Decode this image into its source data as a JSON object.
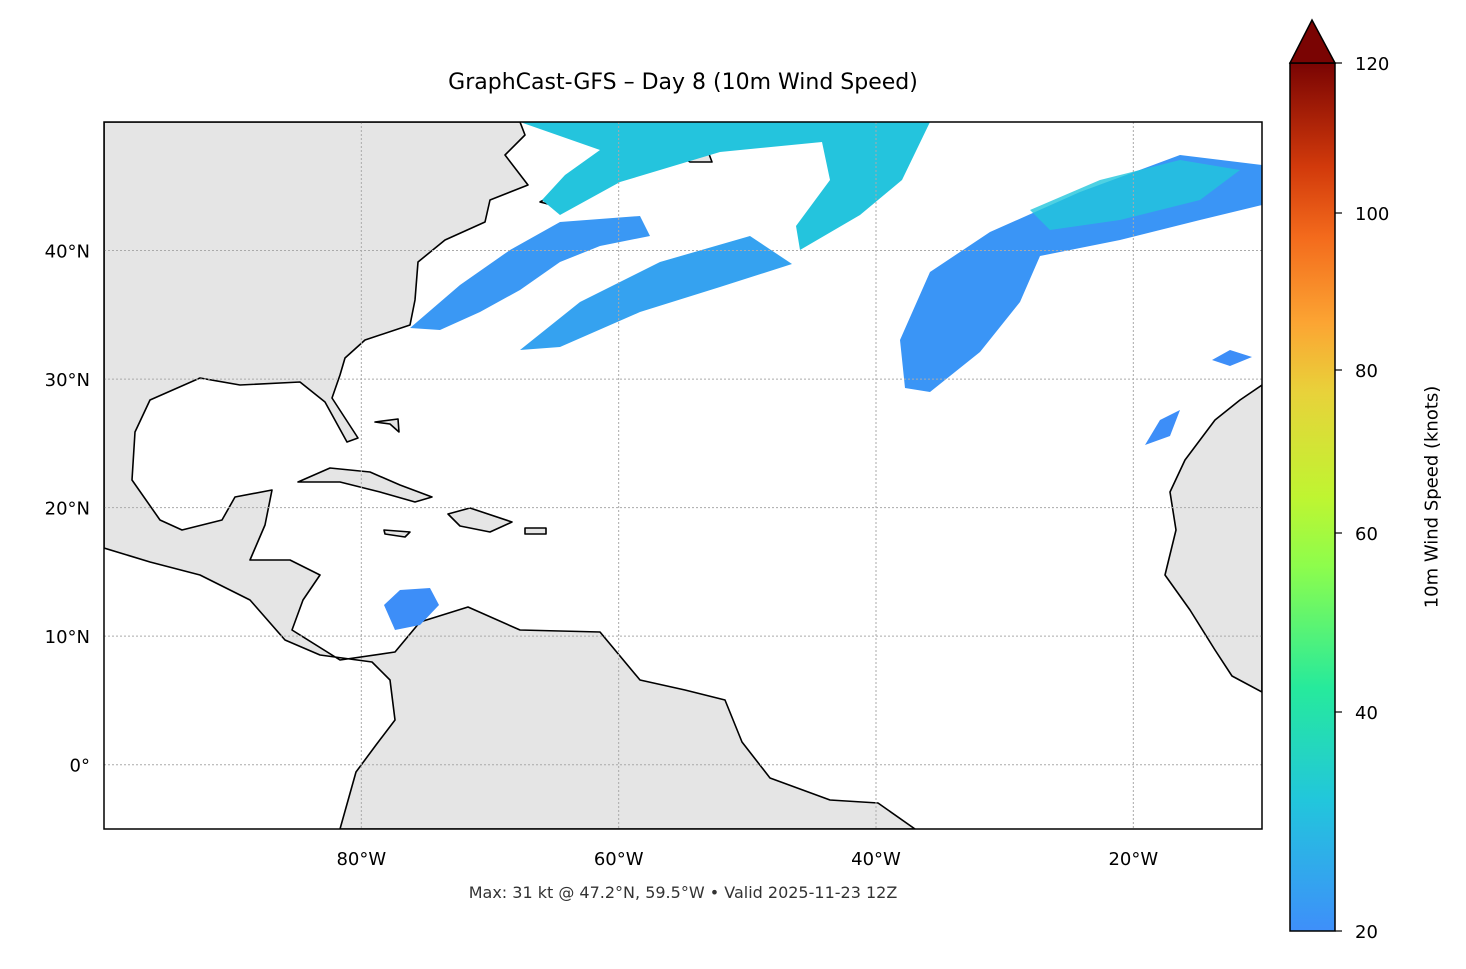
{
  "title": "GraphCast-GFS – Day 8 (10m Wind Speed)",
  "caption": "Max: 31 kt @ 47.2°N, 59.5°W • Valid 2025-11-23 12Z",
  "map": {
    "projection": "PlateCarree",
    "extent_lon": [
      -100,
      -10
    ],
    "extent_lat": [
      -5,
      50
    ],
    "land_color": "#e5e5e5",
    "coastline_color": "#000000",
    "border_color": "#666666",
    "gridlines": "dotted",
    "lon_ticks": [
      {
        "value": -80,
        "label": "80°W"
      },
      {
        "value": -60,
        "label": "60°W"
      },
      {
        "value": -40,
        "label": "40°W"
      },
      {
        "value": -20,
        "label": "20°W"
      }
    ],
    "lat_ticks": [
      {
        "value": 40,
        "label": "40°N"
      },
      {
        "value": 30,
        "label": "30°N"
      },
      {
        "value": 20,
        "label": "20°N"
      },
      {
        "value": 10,
        "label": "10°N"
      },
      {
        "value": 0,
        "label": "0°"
      }
    ],
    "wind_colors": {
      "low": "#3d8ef8",
      "mid": "#22c6dc"
    }
  },
  "colorbar": {
    "label": "10m Wind Speed (knots)",
    "min": 20,
    "max": 120,
    "extend": "max",
    "colormap": "turbo",
    "ticks": [
      "120",
      "100",
      "80",
      "60",
      "40",
      "20"
    ]
  }
}
